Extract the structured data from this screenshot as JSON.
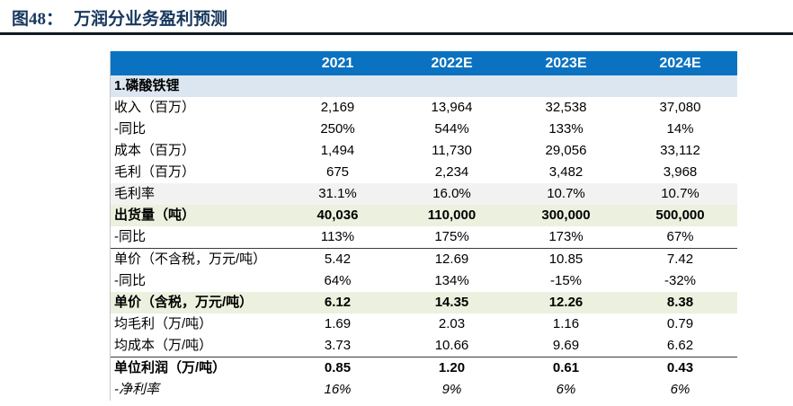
{
  "figure": {
    "number": "图48：",
    "title": "万润分业务盈利预测"
  },
  "table": {
    "header": {
      "label": "",
      "years": [
        "2021",
        "2022E",
        "2023E",
        "2024E"
      ]
    },
    "rows": [
      {
        "label": "1.磷酸铁锂",
        "values": [
          "",
          "",
          "",
          ""
        ],
        "style": "section"
      },
      {
        "label": "收入（百万）",
        "values": [
          "2,169",
          "13,964",
          "32,538",
          "37,080"
        ],
        "style": ""
      },
      {
        "label": "-同比",
        "values": [
          "250%",
          "544%",
          "133%",
          "14%"
        ],
        "style": ""
      },
      {
        "label": "成本（百万）",
        "values": [
          "1,494",
          "11,730",
          "29,056",
          "33,112"
        ],
        "style": ""
      },
      {
        "label": "毛利（百万）",
        "values": [
          "675",
          "2,234",
          "3,482",
          "3,968"
        ],
        "style": ""
      },
      {
        "label": "毛利率",
        "values": [
          "31.1%",
          "16.0%",
          "10.7%",
          "10.7%"
        ],
        "style": "shaded"
      },
      {
        "label": "出货量（吨）",
        "values": [
          "40,036",
          "110,000",
          "300,000",
          "500,000"
        ],
        "style": "highlight"
      },
      {
        "label": "-同比",
        "values": [
          "113%",
          "175%",
          "173%",
          "67%"
        ],
        "style": "divider-below"
      },
      {
        "label": "单价（不含税，万元/吨）",
        "values": [
          "5.42",
          "12.69",
          "10.85",
          "7.42"
        ],
        "style": ""
      },
      {
        "label": "-同比",
        "values": [
          "64%",
          "134%",
          "-15%",
          "-32%"
        ],
        "style": ""
      },
      {
        "label": "单价（含税，万元/吨）",
        "values": [
          "6.12",
          "14.35",
          "12.26",
          "8.38"
        ],
        "style": "highlight"
      },
      {
        "label": "均毛利（万/吨）",
        "values": [
          "1.69",
          "2.03",
          "1.16",
          "0.79"
        ],
        "style": ""
      },
      {
        "label": "均成本（万/吨）",
        "values": [
          "3.73",
          "10.66",
          "9.69",
          "6.62"
        ],
        "style": ""
      },
      {
        "label": "单位利润（万/吨）",
        "values": [
          "0.85",
          "1.20",
          "0.61",
          "0.43"
        ],
        "style": "total"
      },
      {
        "label": "-净利率",
        "values": [
          "16%",
          "9%",
          "6%",
          "6%"
        ],
        "style": "italic"
      }
    ]
  },
  "colors": {
    "header_bg": "#0B72C1",
    "header_text": "#FFFFFF",
    "section_row_bg": "#DCE6F1",
    "shaded_row_bg": "#F2F2F2",
    "highlight_row_bg": "#EBF1DE",
    "title_text": "#17375D",
    "divider": "#111820"
  }
}
